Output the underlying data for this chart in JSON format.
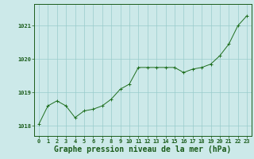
{
  "x": [
    0,
    1,
    2,
    3,
    4,
    5,
    6,
    7,
    8,
    9,
    10,
    11,
    12,
    13,
    14,
    15,
    16,
    17,
    18,
    19,
    20,
    21,
    22,
    23
  ],
  "y": [
    1018.05,
    1018.6,
    1018.75,
    1018.6,
    1018.25,
    1018.45,
    1018.5,
    1018.6,
    1018.8,
    1019.1,
    1019.25,
    1019.75,
    1019.75,
    1019.75,
    1019.75,
    1019.75,
    1019.6,
    1019.7,
    1019.75,
    1019.85,
    1020.1,
    1020.45,
    1021.0,
    1021.3
  ],
  "line_color": "#1e6e1e",
  "marker_color": "#1e6e1e",
  "bg_color": "#cce9e9",
  "grid_color": "#99cccc",
  "title": "Graphe pression niveau de la mer (hPa)",
  "title_color": "#1a5c1a",
  "ylim_min": 1017.7,
  "ylim_max": 1021.65,
  "yticks": [
    1018,
    1019,
    1020,
    1021
  ],
  "xticks": [
    0,
    1,
    2,
    3,
    4,
    5,
    6,
    7,
    8,
    9,
    10,
    11,
    12,
    13,
    14,
    15,
    16,
    17,
    18,
    19,
    20,
    21,
    22,
    23
  ],
  "tick_color": "#1a5c1a",
  "tick_fontsize": 5.0,
  "title_fontsize": 7.0
}
